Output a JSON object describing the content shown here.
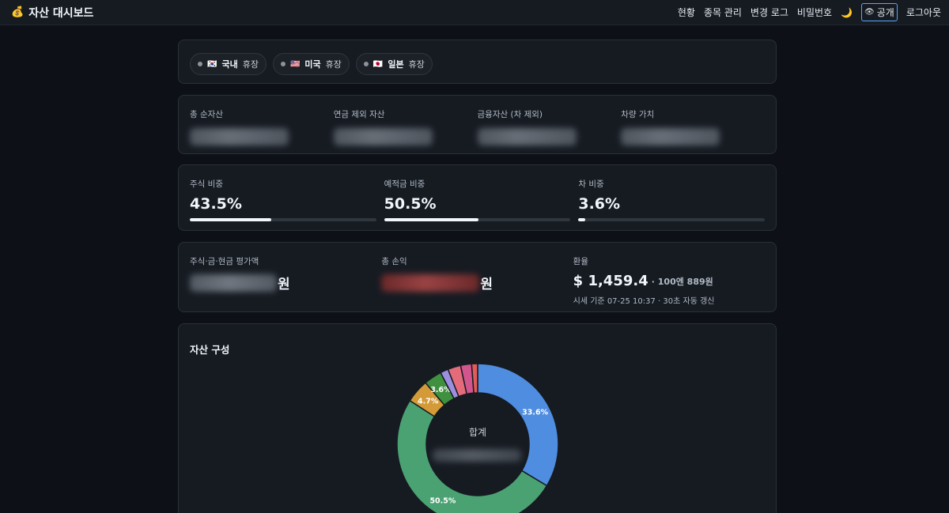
{
  "app": {
    "logo_icon": "money-bag-icon",
    "logo_glyph": "💰",
    "title": "자산 대시보드"
  },
  "nav": {
    "items": [
      "현황",
      "종목 관리",
      "변경 로그",
      "비밀번호"
    ],
    "theme_icon": "🌙",
    "public_icon": "👁",
    "public_label": "공개",
    "logout_label": "로그아웃"
  },
  "markets": [
    {
      "flag": "🇰🇷",
      "country": "국내",
      "status": "휴장"
    },
    {
      "flag": "🇺🇸",
      "country": "미국",
      "status": "휴장"
    },
    {
      "flag": "🇯🇵",
      "country": "일본",
      "status": "휴장"
    }
  ],
  "summary": [
    {
      "label": "총 순자산"
    },
    {
      "label": "연금 제외 자산"
    },
    {
      "label": "금융자산 (차 제외)"
    },
    {
      "label": "차량 가치"
    }
  ],
  "ratios": [
    {
      "label": "주식 비중",
      "value": "43.5%",
      "fraction": 0.435
    },
    {
      "label": "예적금 비중",
      "value": "50.5%",
      "fraction": 0.505
    },
    {
      "label": "차 비중",
      "value": "3.6%",
      "fraction": 0.036
    }
  ],
  "valuation": {
    "eval_label": "주식·금·현금 평가액",
    "eval_unit": "원",
    "pnl_label": "총 손익",
    "pnl_unit": "원",
    "fx_label": "환율",
    "fx_value": "$ 1,459.4",
    "fx_sub": "· 100엔 889원",
    "fx_note": "시세 기준 07-25 10:37 · 30초 자동 갱신"
  },
  "composition": {
    "title": "자산 구성",
    "center_label": "합계"
  },
  "chart_data": {
    "type": "pie",
    "title": "자산 구성",
    "slices": [
      {
        "value": 33.6,
        "color": "#4f8de0",
        "label": "33.6%"
      },
      {
        "value": 50.5,
        "color": "#4aa272",
        "label": "50.5%"
      },
      {
        "value": 4.7,
        "color": "#d39a37",
        "label": "4.7%"
      },
      {
        "value": 3.6,
        "color": "#3f9140",
        "label": "3.6%"
      },
      {
        "value": 1.6,
        "color": "#9d8fe0",
        "label": ""
      },
      {
        "value": 2.6,
        "color": "#e36b7a",
        "label": ""
      },
      {
        "value": 2.2,
        "color": "#d3558e",
        "label": ""
      },
      {
        "value": 1.2,
        "color": "#e05c55",
        "label": ""
      }
    ]
  }
}
